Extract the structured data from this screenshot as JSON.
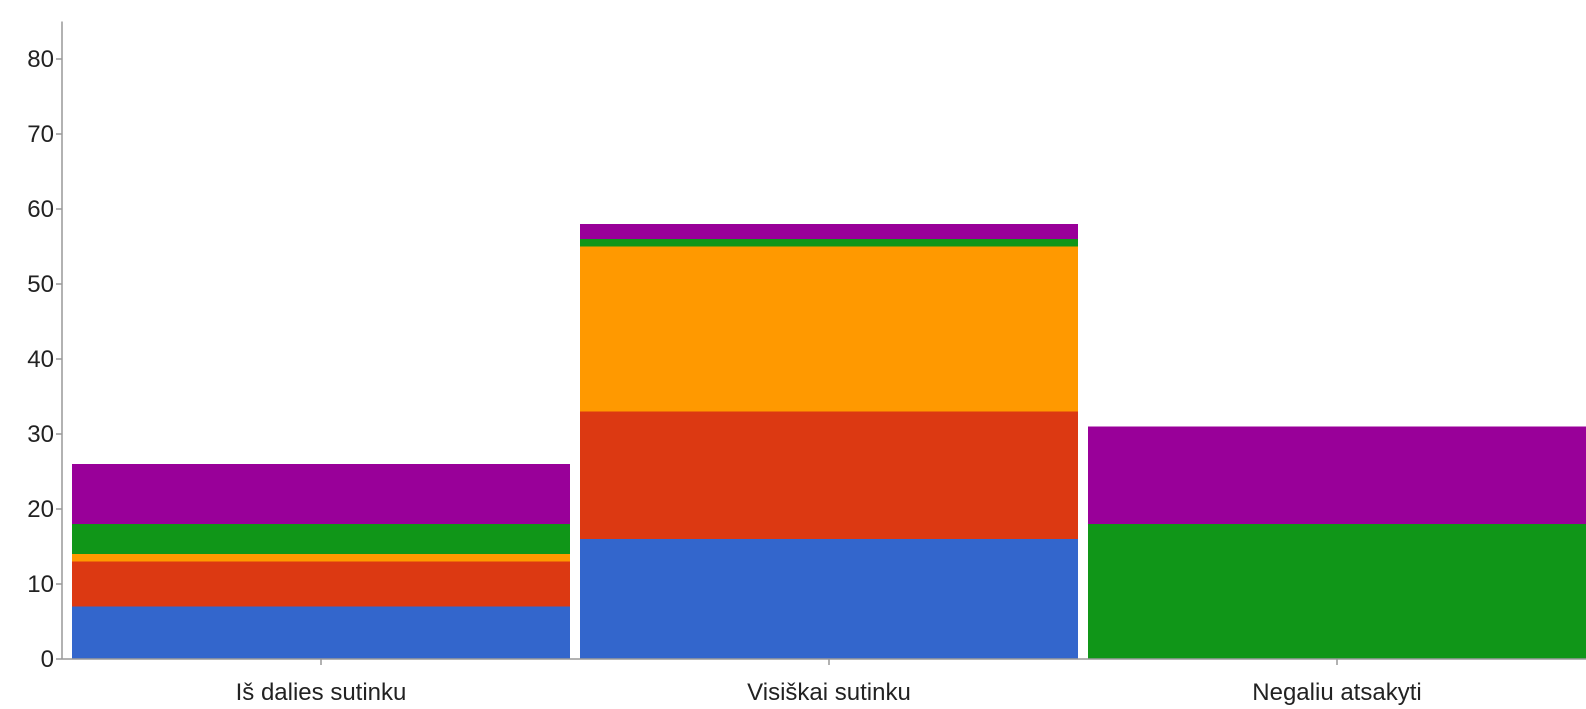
{
  "chart_data": {
    "type": "bar",
    "stacked": true,
    "categories": [
      "Iš dalies sutinku",
      "Visiškai sutinku",
      "Negaliu atsakyti"
    ],
    "series": [
      {
        "color": "#3366cc",
        "values": [
          7,
          16,
          0
        ]
      },
      {
        "color": "#dc3912",
        "values": [
          6,
          17,
          0
        ]
      },
      {
        "color": "#ff9900",
        "values": [
          1,
          22,
          0
        ]
      },
      {
        "color": "#109618",
        "values": [
          4,
          1,
          18
        ]
      },
      {
        "color": "#990099",
        "values": [
          8,
          2,
          13
        ]
      }
    ],
    "y_ticks": [
      "0",
      "10",
      "20",
      "30",
      "40",
      "50",
      "60",
      "70",
      "80"
    ],
    "ylim": [
      0,
      85
    ],
    "grid": false,
    "legend": "none",
    "title": "",
    "xlabel": "",
    "ylabel": ""
  }
}
